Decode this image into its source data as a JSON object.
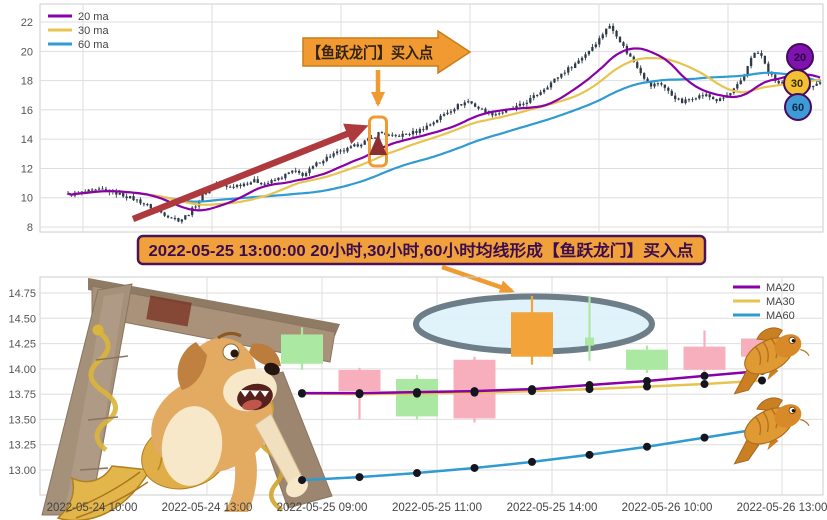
{
  "page": {
    "background": "#ffffff"
  },
  "banner": {
    "text": "2022-05-25 13:00:00 20小时,30小时,60小时均线形成【鱼跃龙门】买入点",
    "fill": "#f1a13b",
    "border": "#4a1358",
    "text_color": "#3c0d4e"
  },
  "decor": {
    "items": [
      "dragon-gate",
      "dog-with-koi-tail",
      "koi-fish-upper",
      "koi-fish-lower"
    ]
  },
  "colors": {
    "ma20": "#8a00a8",
    "ma30": "#e7c44f",
    "ma60": "#2f9bd0",
    "candle_dark": "#2e3a48",
    "up_pink": "#f7afbe",
    "down_green": "#abe9a3",
    "highlight_orange": "#f2a43b",
    "grid": "#dedede",
    "frame": "#cccccc",
    "axis_text": "#555555",
    "accent_orange": "#ef9b31",
    "red_arrow": "#ae3a3e",
    "ellipse_fill": "#ddf2f9",
    "ellipse_stroke": "#6d7e89",
    "dot": "#15151f"
  },
  "chart_data": [
    {
      "type": "candlestick",
      "id": "hourly-overview",
      "title": "",
      "legend": [
        {
          "label": "20 ma",
          "color": "#8a00a8"
        },
        {
          "label": "30 ma",
          "color": "#e7c44f"
        },
        {
          "label": "60 ma",
          "color": "#2f9bd0"
        }
      ],
      "y_ticks": [
        22,
        20,
        18,
        16,
        14,
        12,
        10,
        8
      ],
      "ylim": [
        7.4,
        23.2
      ],
      "x_labels": [],
      "candle_count": 219,
      "price_path": [
        [
          68,
          10.2
        ],
        [
          86,
          10.4
        ],
        [
          104,
          10.55
        ],
        [
          122,
          10.2
        ],
        [
          138,
          9.8
        ],
        [
          155,
          9.2
        ],
        [
          170,
          8.7
        ],
        [
          180,
          8.45
        ],
        [
          190,
          9.0
        ],
        [
          202,
          10.1
        ],
        [
          214,
          11.0
        ],
        [
          226,
          10.7
        ],
        [
          240,
          10.9
        ],
        [
          254,
          11.15
        ],
        [
          266,
          10.95
        ],
        [
          280,
          11.35
        ],
        [
          292,
          11.8
        ],
        [
          304,
          11.55
        ],
        [
          318,
          12.4
        ],
        [
          332,
          12.95
        ],
        [
          346,
          13.25
        ],
        [
          360,
          13.7
        ],
        [
          372,
          14.05
        ],
        [
          380,
          14.5
        ],
        [
          392,
          14.15
        ],
        [
          404,
          14.3
        ],
        [
          418,
          14.55
        ],
        [
          432,
          15.1
        ],
        [
          446,
          15.8
        ],
        [
          458,
          16.3
        ],
        [
          468,
          16.6
        ],
        [
          480,
          16.05
        ],
        [
          494,
          15.7
        ],
        [
          508,
          15.95
        ],
        [
          522,
          16.35
        ],
        [
          536,
          17.0
        ],
        [
          550,
          17.8
        ],
        [
          562,
          18.5
        ],
        [
          576,
          19.2
        ],
        [
          588,
          20.0
        ],
        [
          600,
          20.9
        ],
        [
          608,
          21.8
        ],
        [
          616,
          21.2
        ],
        [
          626,
          20.0
        ],
        [
          638,
          18.9
        ],
        [
          650,
          17.6
        ],
        [
          660,
          17.9
        ],
        [
          670,
          17.1
        ],
        [
          682,
          16.5
        ],
        [
          694,
          16.9
        ],
        [
          706,
          17.0
        ],
        [
          718,
          16.6
        ],
        [
          730,
          17.1
        ],
        [
          742,
          18.0
        ],
        [
          752,
          19.8
        ],
        [
          760,
          19.9
        ],
        [
          768,
          18.6
        ],
        [
          778,
          17.8
        ],
        [
          790,
          17.9
        ],
        [
          802,
          17.5
        ],
        [
          812,
          17.7
        ],
        [
          822,
          17.9
        ]
      ],
      "buy_point": {
        "label": "【鱼跃龙门】买入点",
        "price": 14.4
      },
      "trend_arrow": {
        "from_price": 8.5,
        "to_price": 14.4
      },
      "ma_badges": [
        {
          "label": "20",
          "fill": "#8012b0",
          "text_color": "#26043c"
        },
        {
          "label": "30",
          "fill": "#f2c233",
          "text_color": "#3a2b06"
        },
        {
          "label": "60",
          "fill": "#3e9bd6",
          "text_color": "#0b2b4a"
        }
      ]
    },
    {
      "type": "candlestick",
      "id": "buy-point-detail",
      "title": "",
      "legend": [
        {
          "label": "MA20",
          "color": "#8a00a8"
        },
        {
          "label": "MA30",
          "color": "#e7c44f"
        },
        {
          "label": "MA60",
          "color": "#2f9bd0"
        }
      ],
      "y_ticks": [
        14.75,
        14.5,
        14.25,
        14.0,
        13.75,
        13.5,
        13.25,
        13.0
      ],
      "ylim": [
        12.8,
        14.9
      ],
      "x_labels": [
        "2022-05-24 10:00",
        "2022-05-24 13:00",
        "2022-05-25 09:00",
        "2022-05-25 11:00",
        "2022-05-25 14:00",
        "2022-05-26 10:00",
        "2022-05-26 13:00"
      ],
      "candles": [
        {
          "o": 14.34,
          "h": 14.41,
          "l": 13.99,
          "c": 14.05,
          "dir": "down"
        },
        {
          "o": 13.78,
          "h": 14.01,
          "l": 13.5,
          "c": 13.99,
          "dir": "up"
        },
        {
          "o": 13.9,
          "h": 13.94,
          "l": 13.5,
          "c": 13.53,
          "dir": "down"
        },
        {
          "o": 13.51,
          "h": 14.12,
          "l": 13.47,
          "c": 14.09,
          "dir": "up"
        },
        {
          "o": 14.12,
          "h": 14.72,
          "l": 14.04,
          "c": 14.56,
          "dir": "up",
          "highlight": true
        },
        {
          "o": 14.31,
          "h": 14.71,
          "l": 14.08,
          "c": 14.23,
          "dir": "down",
          "narrow": true
        },
        {
          "o": 14.19,
          "h": 14.23,
          "l": 13.96,
          "c": 13.99,
          "dir": "down"
        },
        {
          "o": 13.99,
          "h": 14.38,
          "l": 13.96,
          "c": 14.22,
          "dir": "up"
        },
        {
          "o": 14.12,
          "h": 14.36,
          "l": 14.07,
          "c": 14.3,
          "dir": "up"
        }
      ],
      "highlight_index": 4,
      "series": [
        {
          "name": "MA20",
          "color": "#8a00a8",
          "values": [
            13.76,
            13.76,
            13.77,
            13.78,
            13.8,
            13.84,
            13.88,
            13.93,
            13.98
          ]
        },
        {
          "name": "MA30",
          "color": "#e7c44f",
          "values": [
            13.755,
            13.75,
            13.755,
            13.765,
            13.78,
            13.8,
            13.825,
            13.85,
            13.885
          ]
        },
        {
          "name": "MA60",
          "color": "#2f9bd0",
          "values": [
            12.9,
            12.93,
            12.97,
            13.02,
            13.08,
            13.15,
            13.23,
            13.32,
            13.41
          ]
        }
      ]
    }
  ]
}
